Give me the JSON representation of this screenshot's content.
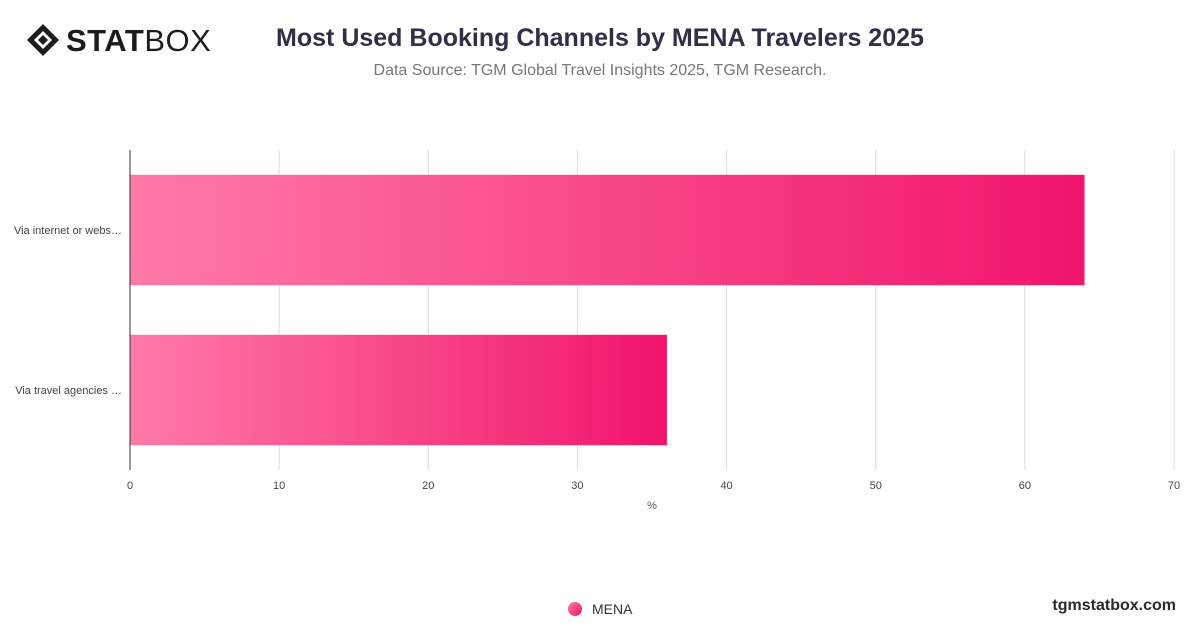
{
  "brand": {
    "logo_bold": "STAT",
    "logo_light": "BOX",
    "website": "tgmstatbox.com"
  },
  "chart_data": {
    "type": "bar",
    "orientation": "horizontal",
    "title": "Most Used Booking Channels by MENA Travelers 2025",
    "subtitle": "Data Source: TGM Global Travel Insights 2025, TGM Research.",
    "categories": [
      "Via internet or webs…",
      "Via travel agencies …"
    ],
    "series": [
      {
        "name": "MENA",
        "values": [
          64,
          36
        ],
        "color_start": "#ff7aa8",
        "color_end": "#f0146a"
      }
    ],
    "xlabel": "%",
    "ylabel": "",
    "xlim": [
      0,
      70
    ],
    "xticks": [
      0,
      10,
      20,
      30,
      40,
      50,
      60,
      70
    ],
    "grid": true,
    "legend_position": "bottom"
  }
}
